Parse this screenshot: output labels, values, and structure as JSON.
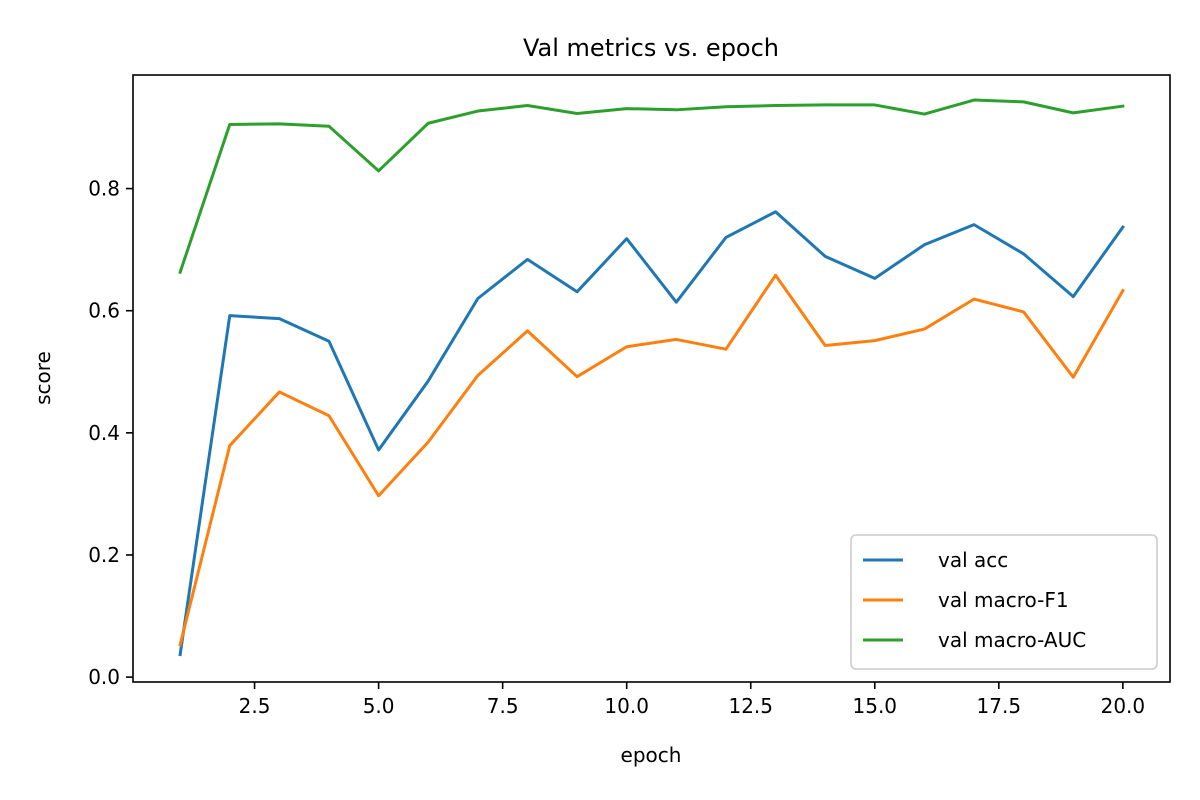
{
  "chart_data": {
    "type": "line",
    "title": "Val metrics vs. epoch",
    "xlabel": "epoch",
    "ylabel": "score",
    "xlim": [
      0.05,
      20.95
    ],
    "ylim": [
      -0.008,
      0.986
    ],
    "xticks": [
      2.5,
      5.0,
      7.5,
      10.0,
      12.5,
      15.0,
      17.5,
      20.0
    ],
    "xtick_labels": [
      "2.5",
      "5.0",
      "7.5",
      "10.0",
      "12.5",
      "15.0",
      "17.5",
      "20.0"
    ],
    "yticks": [
      0.0,
      0.2,
      0.4,
      0.6,
      0.8
    ],
    "ytick_labels": [
      "0.0",
      "0.2",
      "0.4",
      "0.6",
      "0.8"
    ],
    "grid": false,
    "legend_position": "lower-right",
    "x": [
      1,
      2,
      3,
      4,
      5,
      6,
      7,
      8,
      9,
      10,
      11,
      12,
      13,
      14,
      15,
      16,
      17,
      18,
      19,
      20
    ],
    "series": [
      {
        "name": "val acc",
        "color": "#1f77b4",
        "values": [
          0.037,
          0.592,
          0.587,
          0.55,
          0.372,
          0.485,
          0.62,
          0.684,
          0.631,
          0.718,
          0.614,
          0.72,
          0.762,
          0.689,
          0.653,
          0.708,
          0.741,
          0.693,
          0.623,
          0.737
        ]
      },
      {
        "name": "val macro-F1",
        "color": "#ff7f0e",
        "values": [
          0.053,
          0.379,
          0.467,
          0.428,
          0.297,
          0.385,
          0.494,
          0.567,
          0.492,
          0.541,
          0.553,
          0.537,
          0.658,
          0.543,
          0.551,
          0.57,
          0.619,
          0.598,
          0.491,
          0.633
        ]
      },
      {
        "name": "val macro-AUC",
        "color": "#2ca02c",
        "values": [
          0.663,
          0.905,
          0.906,
          0.902,
          0.829,
          0.907,
          0.927,
          0.936,
          0.923,
          0.931,
          0.929,
          0.934,
          0.936,
          0.937,
          0.937,
          0.922,
          0.945,
          0.942,
          0.924,
          0.935
        ]
      }
    ]
  }
}
